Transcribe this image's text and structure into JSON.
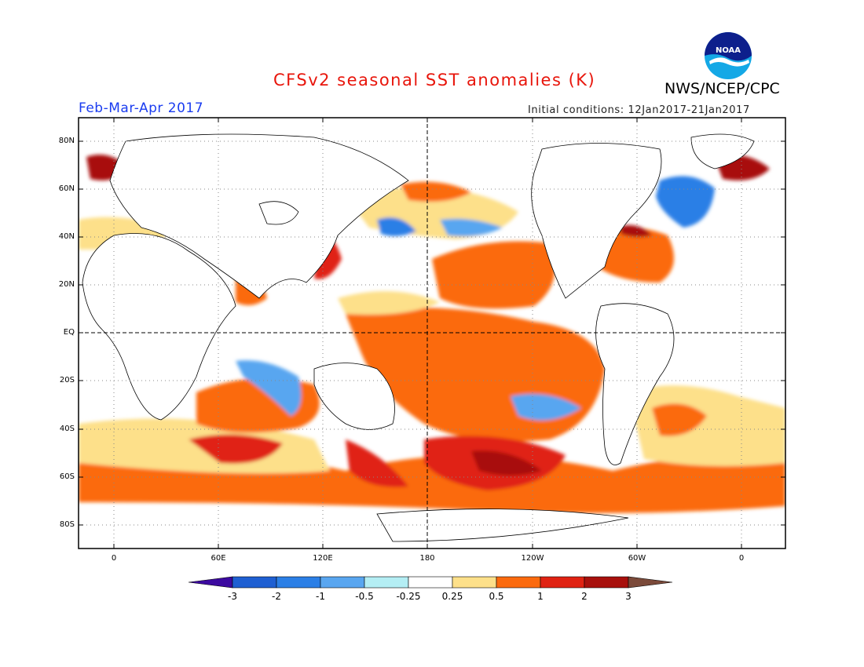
{
  "title": "CFSv2 seasonal SST anomalies (K)",
  "agency": "NWS/NCEP/CPC",
  "logo_text": "NOAA",
  "period": "Feb-Mar-Apr 2017",
  "initial_conditions": "Initial conditions: 12Jan2017-21Jan2017",
  "lat_labels": [
    "80N",
    "60N",
    "40N",
    "20N",
    "EQ",
    "20S",
    "40S",
    "60S",
    "80S"
  ],
  "lon_labels": [
    "0",
    "60E",
    "120E",
    "180",
    "120W",
    "60W",
    "0"
  ],
  "colorbar": {
    "labels": [
      "-3",
      "-2",
      "-1",
      "-0.5",
      "-0.25",
      "0.25",
      "0.5",
      "1",
      "2",
      "3"
    ],
    "colors": [
      "#3c0aa0",
      "#1e5fd2",
      "#2b7fe6",
      "#59a6f0",
      "#b4eef4",
      "#ffffff",
      "#fde08a",
      "#fb6a0e",
      "#e02212",
      "#a8100c",
      "#7b4a3a"
    ]
  }
}
